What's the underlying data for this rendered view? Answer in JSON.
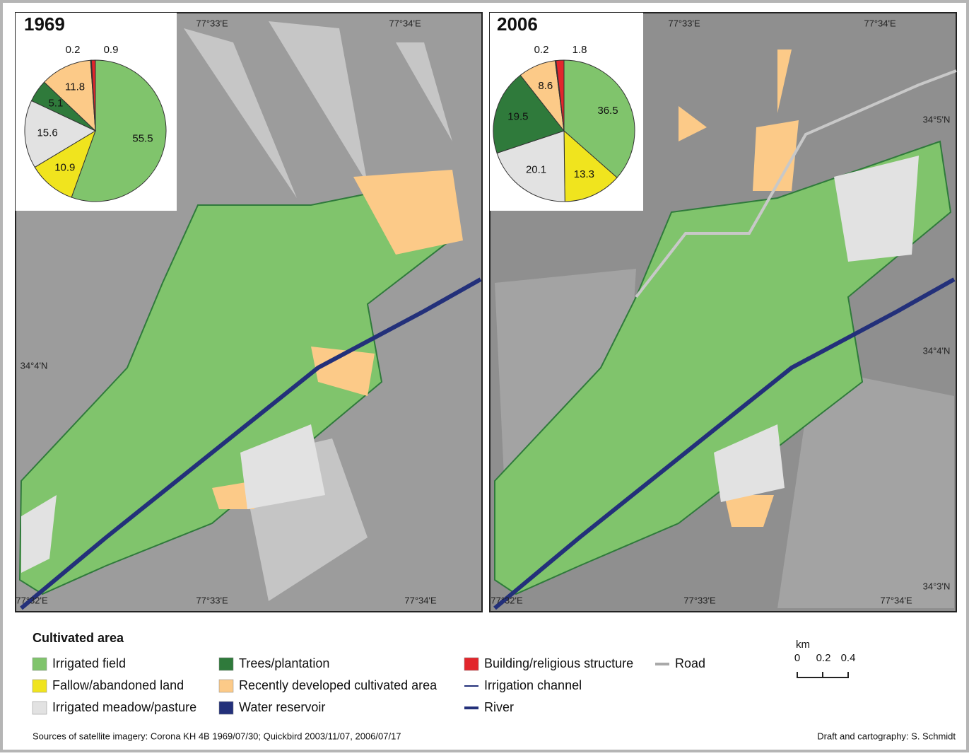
{
  "chart_data": [
    {
      "type": "pie",
      "title": "1969",
      "values": [
        55.5,
        10.9,
        15.6,
        5.1,
        11.8,
        0.2,
        0.9
      ],
      "colors": [
        "#80c46c",
        "#f0e41e",
        "#e2e2e2",
        "#2f7a3b",
        "#fcca88",
        "#23307a",
        "#e2262c"
      ]
    },
    {
      "type": "pie",
      "title": "2006",
      "values": [
        36.5,
        13.3,
        20.1,
        19.5,
        8.6,
        0.2,
        1.8
      ],
      "colors": [
        "#80c46c",
        "#f0e41e",
        "#e2e2e2",
        "#2f7a3b",
        "#fcca88",
        "#23307a",
        "#e2262c"
      ]
    }
  ],
  "maps": [
    {
      "top_labels": [
        "77°33'E",
        "77°34'E"
      ],
      "bottom_labels": [
        "77°32'E",
        "77°33'E",
        "77°34'E"
      ],
      "side_labels": [
        "34°4'N"
      ]
    },
    {
      "top_labels": [
        "77°33'E",
        "77°34'E"
      ],
      "bottom_labels": [
        "77°32'E",
        "77°33'E",
        "77°34'E"
      ],
      "side_labels": [
        "34°5'N",
        "34°4'N",
        "34°3'N"
      ]
    }
  ],
  "legend": {
    "title": "Cultivated area",
    "items": [
      {
        "label": "Irrigated field",
        "color": "#80c46c",
        "symbol": "patch"
      },
      {
        "label": "Fallow/abandoned land",
        "color": "#f0e41e",
        "symbol": "patch"
      },
      {
        "label": "Irrigated meadow/pasture",
        "color": "#e2e2e2",
        "symbol": "patch"
      },
      {
        "label": "Trees/plantation",
        "color": "#2f7a3b",
        "symbol": "patch"
      },
      {
        "label": "Recently developed cultivated area",
        "color": "#fcca88",
        "symbol": "patch"
      },
      {
        "label": "Water reservoir",
        "color": "#23307a",
        "symbol": "patch"
      },
      {
        "label": "Building/religious structure",
        "color": "#e2262c",
        "symbol": "patch"
      },
      {
        "label": "Irrigation channel",
        "color": "#23307a",
        "symbol": "line"
      },
      {
        "label": "River",
        "color": "#23307a",
        "symbol": "line"
      },
      {
        "label": "Road",
        "color": "#a9a9a9",
        "symbol": "line"
      }
    ]
  },
  "scale_bar": {
    "unit": "km",
    "ticks": [
      "0",
      "0.2",
      "0.4"
    ]
  },
  "sources": "Sources of satellite imagery: Corona KH 4B 1969/07/30; Quickbird 2003/11/07, 2006/07/17",
  "credit": "Draft and cartography: S. Schmidt"
}
